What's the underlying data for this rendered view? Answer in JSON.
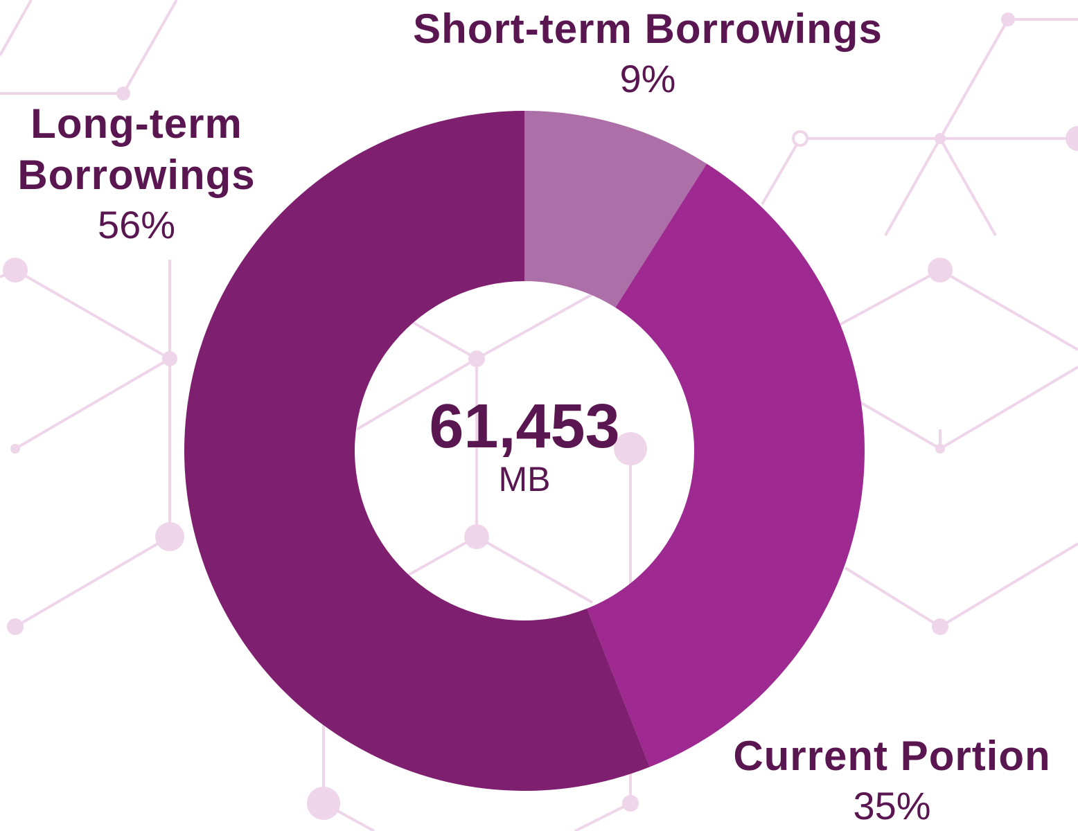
{
  "chart_data": {
    "type": "pie",
    "categories": [
      "Short-term Borrowings",
      "Current Portion",
      "Long-term Borrowings"
    ],
    "values": [
      9,
      35,
      56
    ],
    "value_labels": [
      "9%",
      "35%",
      "56%"
    ],
    "colors": [
      "#ad6fa8",
      "#9e2a91",
      "#7f1f6f"
    ],
    "center_text": "61,453",
    "center_unit": "MB"
  }
}
